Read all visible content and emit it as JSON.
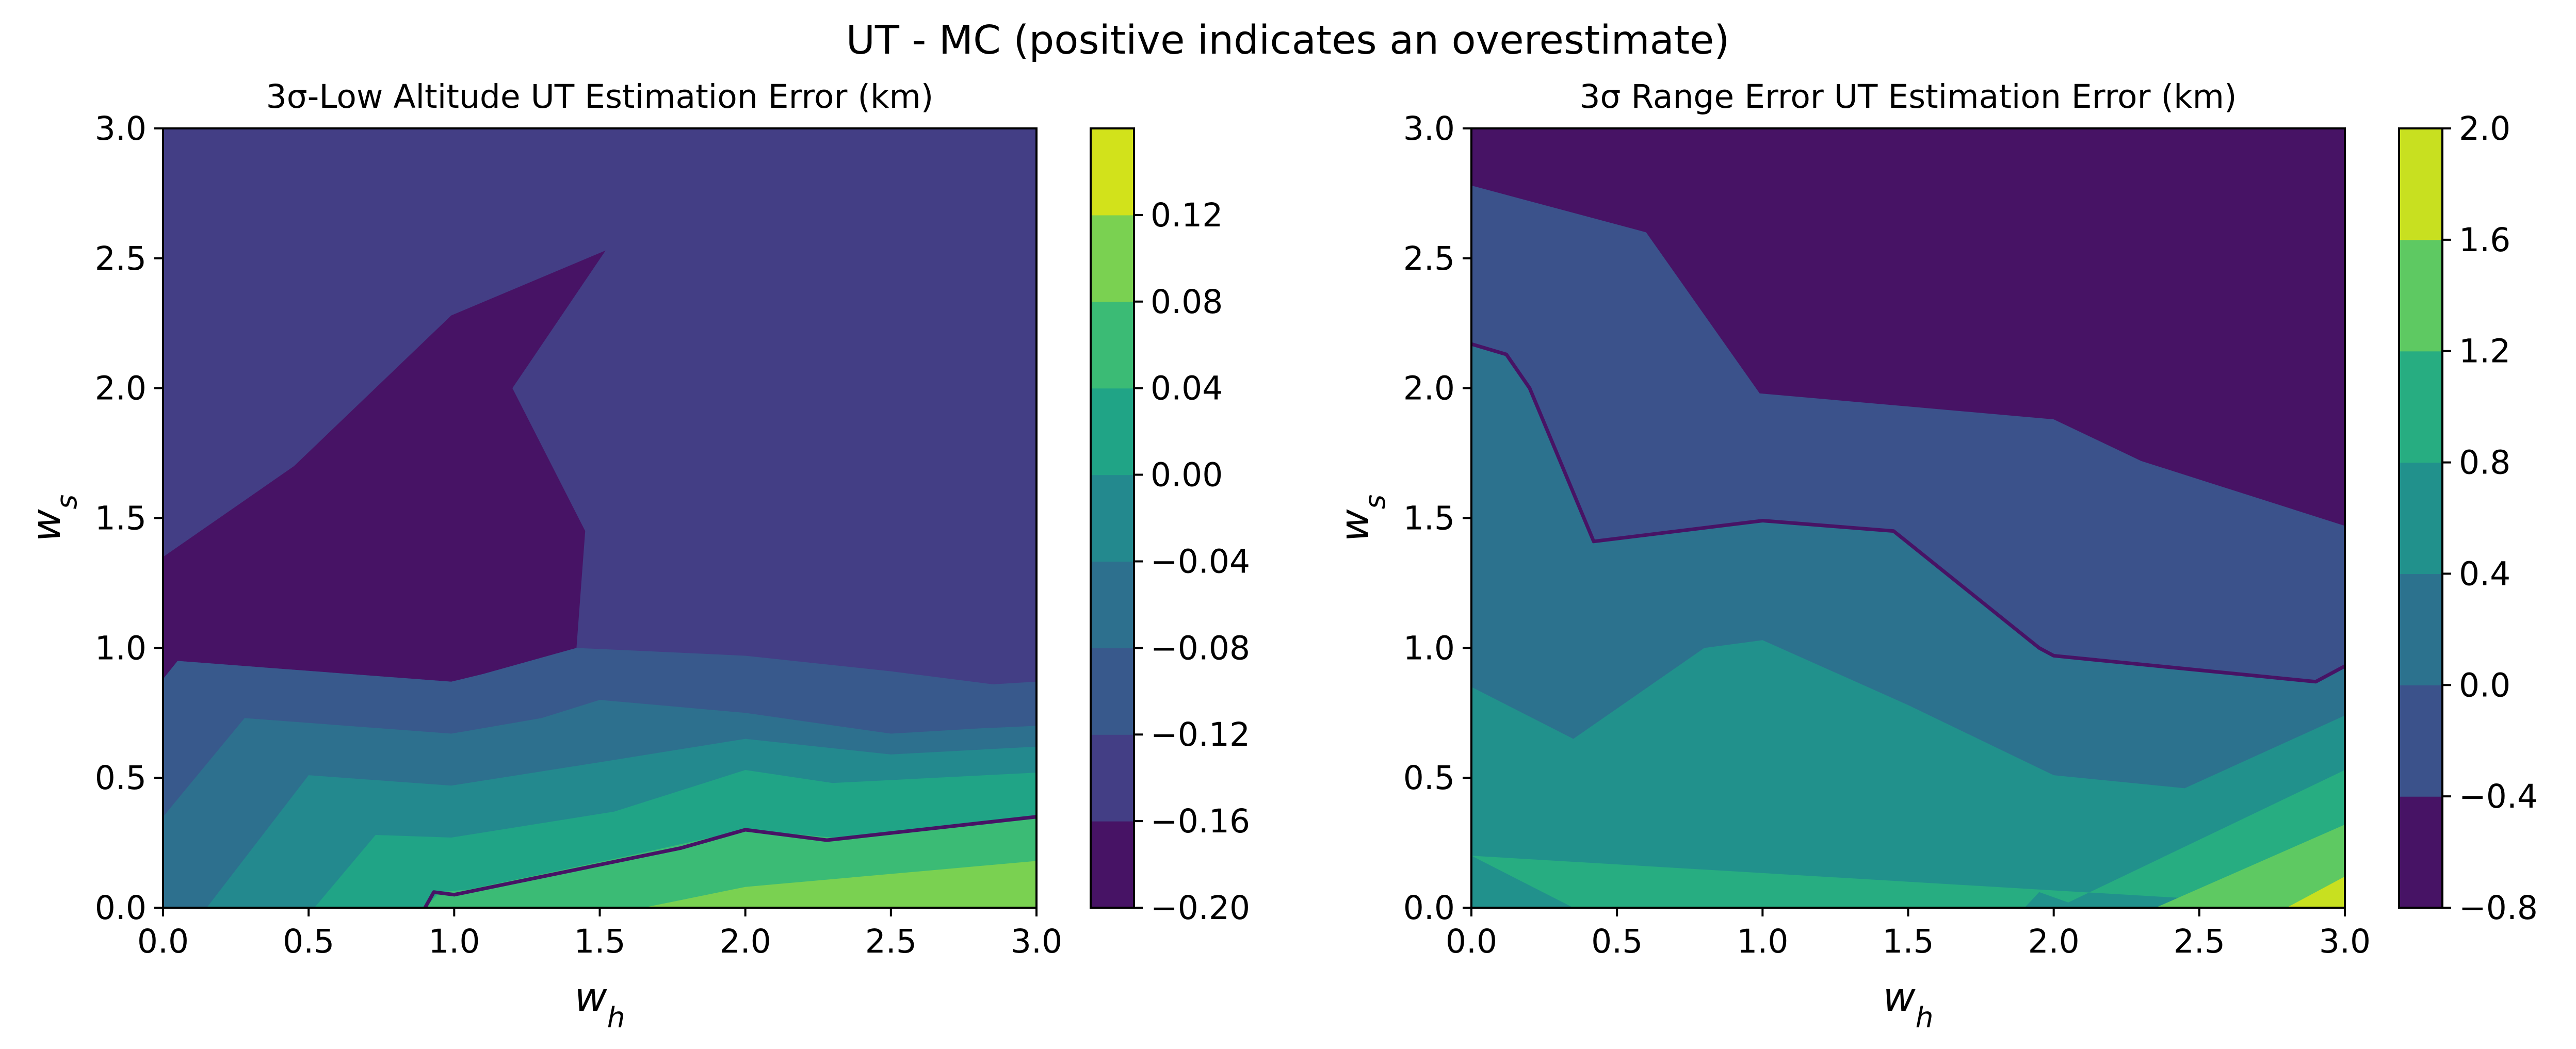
{
  "suptitle": "UT - MC (positive indicates an overestimate)",
  "chart_data": [
    {
      "type": "contour",
      "title": "3σ-Low Altitude UT Estimation Error (km)",
      "xlabel": "w_h",
      "ylabel": "w_s",
      "xlim": [
        0.0,
        3.0
      ],
      "ylim": [
        0.0,
        3.0
      ],
      "xticks": [
        "0.0",
        "0.5",
        "1.0",
        "1.5",
        "2.0",
        "2.5",
        "3.0"
      ],
      "yticks": [
        "0.0",
        "0.5",
        "1.0",
        "1.5",
        "2.0",
        "2.5",
        "3.0"
      ],
      "colorbar": {
        "levels": [
          -0.2,
          -0.16,
          -0.12,
          -0.08,
          -0.04,
          0.0,
          0.04,
          0.08,
          0.12
        ],
        "tick_labels": [
          "−0.20",
          "−0.16",
          "−0.12",
          "−0.08",
          "−0.04",
          "0.00",
          "0.04",
          "0.08",
          "0.12"
        ],
        "colors": [
          "#471365",
          "#433e85",
          "#38598c",
          "#2d708e",
          "#23898e",
          "#20a486",
          "#3bbb75",
          "#7ad151",
          "#d2e21b"
        ]
      },
      "background_color": "#433e85",
      "regions": [
        {
          "color": "#471365",
          "points": [
            [
              0,
              1.35
            ],
            [
              0.45,
              1.7
            ],
            [
              0.99,
              2.28
            ],
            [
              1.52,
              2.53
            ],
            [
              1.2,
              2.0
            ],
            [
              1.45,
              1.45
            ],
            [
              1.42,
              1.0
            ],
            [
              1.1,
              0.9
            ],
            [
              0.99,
              0.87
            ],
            [
              0.05,
              0.95
            ],
            [
              0,
              0.88
            ]
          ]
        },
        {
          "color": "#38598c",
          "points": [
            [
              0,
              0.88
            ],
            [
              0.05,
              0.95
            ],
            [
              0.99,
              0.87
            ],
            [
              1.1,
              0.9
            ],
            [
              1.42,
              1.0
            ],
            [
              2.0,
              0.97
            ],
            [
              2.5,
              0.91
            ],
            [
              2.85,
              0.86
            ],
            [
              3.0,
              0.87
            ],
            [
              3.0,
              0
            ],
            [
              0,
              0
            ]
          ]
        },
        {
          "color": "#2d708e",
          "points": [
            [
              0,
              0.35
            ],
            [
              0.28,
              0.73
            ],
            [
              0.99,
              0.67
            ],
            [
              1.3,
              0.73
            ],
            [
              1.5,
              0.8
            ],
            [
              2.0,
              0.75
            ],
            [
              2.5,
              0.67
            ],
            [
              2.8,
              0.69
            ],
            [
              3.0,
              0.7
            ],
            [
              3.0,
              0
            ],
            [
              0,
              0
            ]
          ]
        },
        {
          "color": "#23898e",
          "points": [
            [
              0.15,
              0
            ],
            [
              0.5,
              0.51
            ],
            [
              0.99,
              0.47
            ],
            [
              1.5,
              0.56
            ],
            [
              2.0,
              0.65
            ],
            [
              2.5,
              0.59
            ],
            [
              3.0,
              0.62
            ],
            [
              3.0,
              0
            ]
          ]
        },
        {
          "color": "#20a486",
          "points": [
            [
              0.52,
              0
            ],
            [
              0.73,
              0.28
            ],
            [
              0.99,
              0.27
            ],
            [
              1.55,
              0.37
            ],
            [
              2.0,
              0.53
            ],
            [
              2.3,
              0.48
            ],
            [
              3.0,
              0.52
            ],
            [
              3.0,
              0
            ]
          ]
        },
        {
          "color": "#3bbb75",
          "points": [
            [
              0.9,
              0
            ],
            [
              0.95,
              0.06
            ],
            [
              1.05,
              0.07
            ],
            [
              1.6,
              0.2
            ],
            [
              2.0,
              0.3
            ],
            [
              2.3,
              0.27
            ],
            [
              3.0,
              0.35
            ],
            [
              3.0,
              0
            ]
          ]
        },
        {
          "color": "#7ad151",
          "points": [
            [
              1.65,
              0
            ],
            [
              2.0,
              0.08
            ],
            [
              2.5,
              0.13
            ],
            [
              3.0,
              0.18
            ],
            [
              3.0,
              0
            ]
          ]
        }
      ],
      "line": {
        "color": "#471365",
        "points": [
          [
            0.9,
            0
          ],
          [
            0.93,
            0.06
          ],
          [
            1.0,
            0.05
          ],
          [
            1.78,
            0.23
          ],
          [
            2.0,
            0.3
          ],
          [
            2.28,
            0.26
          ],
          [
            3.0,
            0.35
          ]
        ]
      }
    },
    {
      "type": "contour",
      "title": "3σ Range Error UT Estimation Error (km)",
      "xlabel": "w_h",
      "ylabel": "w_s",
      "xlim": [
        0.0,
        3.0
      ],
      "ylim": [
        0.0,
        3.0
      ],
      "xticks": [
        "0.0",
        "0.5",
        "1.0",
        "1.5",
        "2.0",
        "2.5",
        "3.0"
      ],
      "yticks": [
        "0.0",
        "0.5",
        "1.0",
        "1.5",
        "2.0",
        "2.5",
        "3.0"
      ],
      "colorbar": {
        "levels": [
          -0.8,
          -0.4,
          0.0,
          0.4,
          0.8,
          1.2,
          1.6,
          2.0
        ],
        "tick_labels": [
          "−0.8",
          "−0.4",
          "0.0",
          "0.4",
          "0.8",
          "1.2",
          "1.6",
          "2.0"
        ],
        "colors": [
          "#471365",
          "#3b528b",
          "#2c728e",
          "#21918c",
          "#27ad81",
          "#5ec962",
          "#c8e020"
        ]
      },
      "background_color": "#471365",
      "regions": [
        {
          "color": "#3b528b",
          "points": [
            [
              0,
              2.78
            ],
            [
              0.6,
              2.6
            ],
            [
              0.99,
              1.98
            ],
            [
              2.0,
              1.88
            ],
            [
              2.3,
              1.72
            ],
            [
              3.0,
              1.47
            ],
            [
              3.0,
              0
            ],
            [
              0,
              0
            ]
          ]
        },
        {
          "color": "#2c728e",
          "points": [
            [
              0,
              2.17
            ],
            [
              0.12,
              2.13
            ],
            [
              0.2,
              2.0
            ],
            [
              0.42,
              1.41
            ],
            [
              1.0,
              1.49
            ],
            [
              1.45,
              1.45
            ],
            [
              1.95,
              1.0
            ],
            [
              2.0,
              0.97
            ],
            [
              2.9,
              0.87
            ],
            [
              3.0,
              0.93
            ],
            [
              3.0,
              0
            ],
            [
              0,
              0
            ]
          ]
        },
        {
          "color": "#21918c",
          "points": [
            [
              0,
              0.85
            ],
            [
              0.35,
              0.65
            ],
            [
              0.8,
              1.0
            ],
            [
              1.0,
              1.03
            ],
            [
              1.5,
              0.78
            ],
            [
              2.0,
              0.51
            ],
            [
              2.45,
              0.46
            ],
            [
              3.0,
              0.74
            ],
            [
              3.0,
              0
            ],
            [
              0,
              0
            ]
          ]
        },
        {
          "color": "#27ad81",
          "points": [
            [
              0,
              0.2
            ],
            [
              0.35,
              0
            ],
            [
              1.9,
              0
            ],
            [
              1.95,
              0.06
            ],
            [
              2.05,
              0.02
            ],
            [
              3.0,
              0.53
            ],
            [
              3.0,
              0
            ]
          ]
        },
        {
          "color": "#5ec962",
          "points": [
            [
              2.35,
              0
            ],
            [
              3.0,
              0.32
            ],
            [
              3.0,
              0
            ]
          ]
        },
        {
          "color": "#c8e020",
          "points": [
            [
              2.8,
              0
            ],
            [
              3.0,
              0.12
            ],
            [
              3.0,
              0
            ]
          ]
        }
      ],
      "line": {
        "color": "#471365",
        "points": [
          [
            0,
            2.17
          ],
          [
            0.12,
            2.13
          ],
          [
            0.2,
            2.0
          ],
          [
            0.42,
            1.41
          ],
          [
            1.0,
            1.49
          ],
          [
            1.45,
            1.45
          ],
          [
            1.95,
            1.0
          ],
          [
            2.0,
            0.97
          ],
          [
            2.9,
            0.87
          ],
          [
            3.0,
            0.93
          ]
        ]
      }
    }
  ]
}
